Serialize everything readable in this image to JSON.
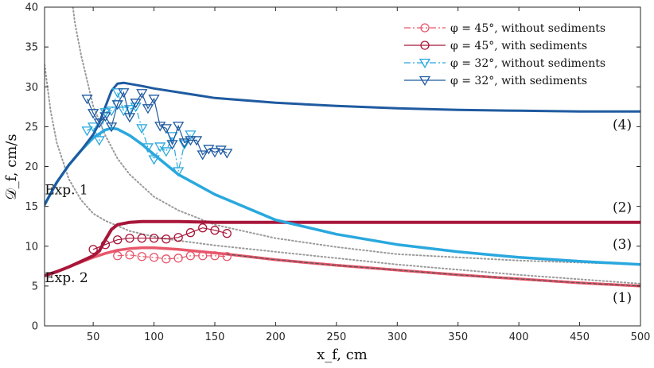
{
  "chart_data": {
    "type": "line",
    "xlabel": "x_f, cm",
    "ylabel": "𝒟_f, cm/s",
    "xlim": [
      10,
      500
    ],
    "ylim": [
      0,
      40
    ],
    "xticks": [
      50,
      100,
      150,
      200,
      250,
      300,
      350,
      400,
      450,
      500
    ],
    "yticks": [
      0,
      5,
      10,
      15,
      20,
      25,
      30,
      35,
      40
    ],
    "legend_position": "top-right",
    "legend": [
      {
        "label": "φ = 45°, without sediments",
        "color": "#e8576b",
        "marker": "circle",
        "line": "dashdot"
      },
      {
        "label": "φ = 45°, with sediments",
        "color": "#a8163a",
        "marker": "circle",
        "line": "solid"
      },
      {
        "label": "φ = 32°, without sediments",
        "color": "#29a8de",
        "marker": "triangle-down",
        "line": "dashdot"
      },
      {
        "label": "φ = 32°, with sediments",
        "color": "#1f5aa0",
        "marker": "triangle-down",
        "line": "solid"
      }
    ],
    "annotations": [
      {
        "text": "Exp. 1",
        "x": 28,
        "y": 16.5
      },
      {
        "text": "Exp. 2",
        "x": 28,
        "y": 5.5
      },
      {
        "text": "(1)",
        "x": 485,
        "y": 3.0
      },
      {
        "text": "(2)",
        "x": 485,
        "y": 14.3
      },
      {
        "text": "(3)",
        "x": 485,
        "y": 9.7
      },
      {
        "text": "(4)",
        "x": 485,
        "y": 24.7
      }
    ],
    "model_curves": [
      {
        "name": "(1) 45° without sediments",
        "color": "#e8576b",
        "width": 3.5,
        "x": [
          10,
          20,
          30,
          40,
          50,
          60,
          70,
          80,
          90,
          100,
          120,
          140,
          160,
          200,
          250,
          300,
          350,
          400,
          450,
          500
        ],
        "y": [
          6.3,
          6.8,
          7.4,
          8.0,
          8.6,
          9.1,
          9.5,
          9.7,
          9.8,
          9.8,
          9.6,
          9.3,
          9.0,
          8.3,
          7.6,
          7.0,
          6.4,
          5.9,
          5.4,
          5.0
        ]
      },
      {
        "name": "(1) 45° with sediments",
        "color": "#555555",
        "width": 1.2,
        "dash": "4,3",
        "x": [
          160,
          200,
          250,
          300,
          350,
          400,
          450,
          500
        ],
        "y": [
          9.0,
          8.3,
          7.6,
          7.0,
          6.4,
          5.9,
          5.4,
          5.0
        ]
      },
      {
        "name": "(2) 45° with sediments",
        "color": "#a8163a",
        "width": 4,
        "x": [
          10,
          20,
          30,
          40,
          50,
          55,
          60,
          65,
          70,
          80,
          90,
          100,
          120,
          150,
          200,
          250,
          300,
          350,
          400,
          450,
          500
        ],
        "y": [
          6.3,
          6.8,
          7.4,
          8.1,
          8.8,
          9.4,
          10.8,
          12.1,
          12.7,
          13.0,
          13.1,
          13.1,
          13.1,
          13.0,
          13.0,
          13.0,
          13.0,
          13.0,
          13.0,
          13.0,
          13.0
        ]
      },
      {
        "name": "(3) 32° without sediments",
        "color": "#29a8de",
        "width": 3.5,
        "x": [
          10,
          20,
          30,
          40,
          50,
          60,
          65,
          70,
          80,
          90,
          100,
          120,
          150,
          200,
          250,
          300,
          350,
          400,
          450,
          500
        ],
        "y": [
          15.2,
          18.0,
          20.2,
          22.0,
          23.6,
          24.6,
          24.8,
          24.7,
          23.9,
          22.8,
          21.5,
          19.0,
          16.5,
          13.3,
          11.5,
          10.2,
          9.3,
          8.6,
          8.1,
          7.7
        ]
      },
      {
        "name": "(4) 32° with sediments",
        "color": "#1f5aa0",
        "width": 3,
        "x": [
          10,
          20,
          30,
          40,
          50,
          55,
          60,
          65,
          70,
          75,
          90,
          100,
          150,
          200,
          250,
          300,
          350,
          400,
          450,
          500
        ],
        "y": [
          15.2,
          18.0,
          20.2,
          22.0,
          24.0,
          25.5,
          27.5,
          29.5,
          30.4,
          30.5,
          30.1,
          29.8,
          28.6,
          28.0,
          27.6,
          27.3,
          27.1,
          27.0,
          26.9,
          26.9
        ]
      }
    ],
    "reference_curves": [
      {
        "name": "dotted decay 1",
        "color": "#9a9a9a",
        "x": [
          30,
          35,
          40,
          50,
          60,
          70,
          80,
          100,
          120,
          150,
          200,
          250,
          300,
          400,
          500
        ],
        "y": [
          44.0,
          38.0,
          34.0,
          27.6,
          23.9,
          21.0,
          19.0,
          16.2,
          14.5,
          12.7,
          11.0,
          9.9,
          9.0,
          8.2,
          7.7
        ]
      },
      {
        "name": "dotted decay 2",
        "color": "#9a9a9a",
        "x": [
          10,
          15,
          20,
          30,
          40,
          50,
          60,
          80,
          100,
          120,
          150,
          200,
          250,
          300,
          400,
          500
        ],
        "y": [
          32.8,
          27.0,
          23.0,
          18.4,
          15.8,
          14.1,
          13.2,
          11.9,
          11.2,
          10.7,
          10.1,
          9.3,
          8.5,
          7.7,
          6.4,
          5.3
        ]
      }
    ],
    "series": [
      {
        "name": "φ = 45°, without sediments",
        "color": "#e8576b",
        "marker": "circle",
        "line": "dashdot",
        "x": [
          70,
          80,
          90,
          100,
          110,
          120,
          130,
          140,
          150,
          160
        ],
        "y": [
          8.8,
          8.9,
          8.7,
          8.6,
          8.4,
          8.5,
          8.8,
          8.8,
          8.8,
          8.7
        ]
      },
      {
        "name": "φ = 45°, with sediments",
        "color": "#a8163a",
        "marker": "circle",
        "line": "solid",
        "x": [
          50,
          60,
          70,
          80,
          90,
          100,
          110,
          120,
          130,
          140,
          150,
          160
        ],
        "y": [
          9.6,
          10.2,
          10.8,
          11.0,
          11.0,
          11.0,
          10.9,
          11.1,
          11.7,
          12.3,
          12.0,
          11.6
        ]
      },
      {
        "name": "φ = 32°, without sediments",
        "color": "#29a8de",
        "marker": "triangle-down",
        "line": "dashdot",
        "x": [
          45,
          50,
          55,
          60,
          65,
          70,
          75,
          80,
          85,
          90,
          95,
          100,
          105,
          110,
          115,
          120,
          125,
          130
        ],
        "y": [
          24.5,
          25.0,
          23.3,
          26.8,
          27.0,
          29.3,
          27.0,
          27.2,
          27.5,
          24.8,
          22.4,
          20.9,
          22.5,
          21.9,
          23.8,
          19.4,
          22.8,
          24.0
        ]
      },
      {
        "name": "φ = 32°, with sediments",
        "color": "#1f5aa0",
        "marker": "triangle-down",
        "line": "solid",
        "x": [
          45,
          50,
          55,
          60,
          65,
          70,
          75,
          80,
          85,
          90,
          95,
          100,
          105,
          110,
          115,
          120,
          125,
          130,
          135,
          140,
          145,
          150,
          155,
          160
        ],
        "y": [
          28.5,
          26.7,
          25.5,
          26.3,
          25.0,
          27.8,
          29.3,
          26.2,
          28.0,
          29.2,
          27.3,
          28.5,
          25.1,
          24.8,
          22.8,
          25.1,
          23.0,
          23.3,
          23.3,
          21.5,
          22.2,
          21.8,
          22.1,
          21.7
        ]
      }
    ]
  }
}
